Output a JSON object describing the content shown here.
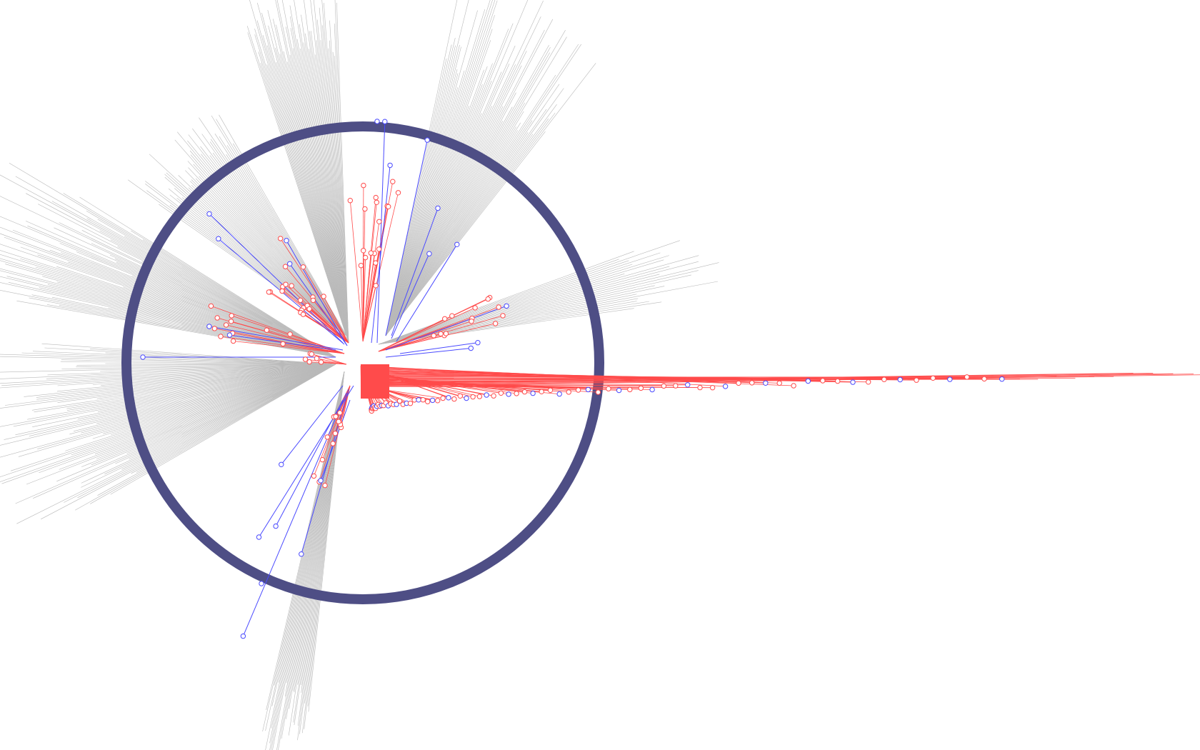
{
  "colors": {
    "background": "#ffffff",
    "ring": "#4e4e85",
    "gray_links": "#b9b9b9",
    "red_links": "#ff4b4b",
    "blue_links": "#4a4aff",
    "node_fill": "#ffffff"
  },
  "visual": {
    "type": "radial network visualization",
    "gray_fan_count": 7,
    "red_fan_count": 6,
    "blue_link_count": 22,
    "horizontal_red_fan": true
  }
}
